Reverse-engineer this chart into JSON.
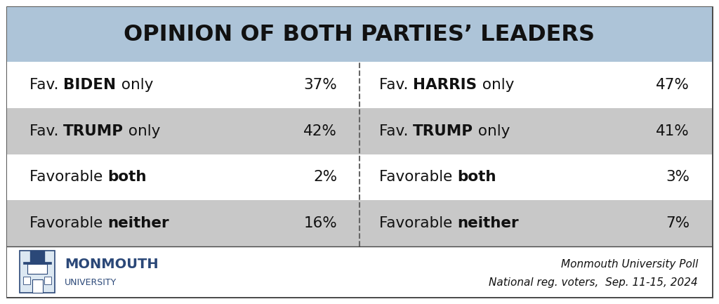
{
  "title": "OPINION OF BOTH PARTIES’ LEADERS",
  "title_bg": "#adc4d8",
  "title_color": "#111111",
  "title_fontsize": 23,
  "outer_bg": "#ffffff",
  "outer_border_color": "#444444",
  "row_colors": [
    "#ffffff",
    "#c8c8c8",
    "#ffffff",
    "#c8c8c8"
  ],
  "footer_bg": "#ffffff",
  "divider_color": "#666666",
  "text_color": "#111111",
  "left_rows": [
    {
      "prefix": "Fav. ",
      "bold_word": "BIDEN",
      "suffix": " only",
      "value": "37%"
    },
    {
      "prefix": "Fav. ",
      "bold_word": "TRUMP",
      "suffix": " only",
      "value": "42%"
    },
    {
      "prefix": "Favorable ",
      "bold_word": "both",
      "suffix": "",
      "value": "2%"
    },
    {
      "prefix": "Favorable ",
      "bold_word": "neither",
      "suffix": "",
      "value": "16%"
    }
  ],
  "right_rows": [
    {
      "prefix": "Fav. ",
      "bold_word": "HARRIS",
      "suffix": " only",
      "value": "47%"
    },
    {
      "prefix": "Fav. ",
      "bold_word": "TRUMP",
      "suffix": " only",
      "value": "41%"
    },
    {
      "prefix": "Favorable ",
      "bold_word": "both",
      "suffix": "",
      "value": "3%"
    },
    {
      "prefix": "Favorable ",
      "bold_word": "neither",
      "suffix": "",
      "value": "7%"
    }
  ],
  "monmouth_color": "#2b4878",
  "footer_right_line1": "Monmouth University Poll",
  "footer_right_line2": "National reg. voters,  Sep. 11-15, 2024",
  "footer_left_line1": "MONMOUTH",
  "footer_left_line2": "UNIVERSITY",
  "row_fontsize": 15.5,
  "val_fontsize": 15.5
}
